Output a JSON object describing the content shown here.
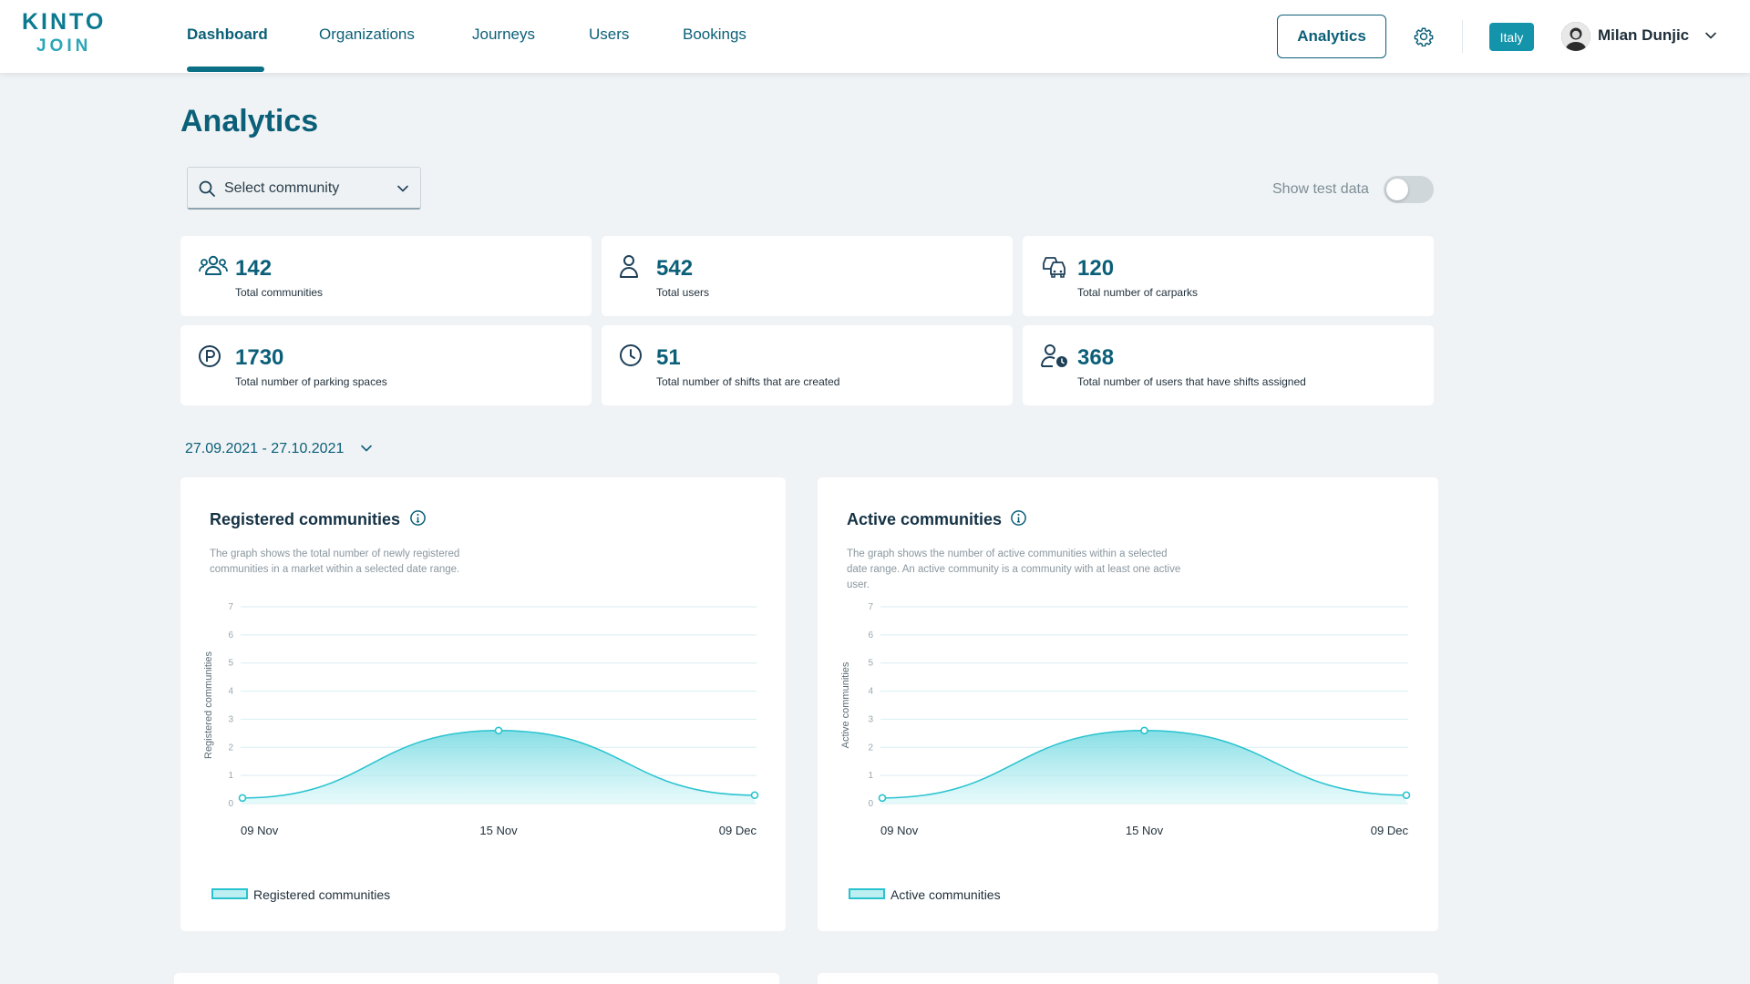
{
  "logo": {
    "line1": "KINTO",
    "line2": "JOIN"
  },
  "nav": [
    {
      "label": "Dashboard",
      "active": true
    },
    {
      "label": "Organizations",
      "active": false
    },
    {
      "label": "Journeys",
      "active": false
    },
    {
      "label": "Users",
      "active": false
    },
    {
      "label": "Bookings",
      "active": false
    }
  ],
  "header": {
    "analytics_button": "Analytics",
    "settings_icon": "gear-icon",
    "country": "Italy",
    "user_name": "Milan Dunjic"
  },
  "page": {
    "title": "Analytics",
    "search_placeholder": "Select community",
    "test_data_label": "Show test data",
    "test_data_enabled": false,
    "date_range": "27.09.2021 - 27.10.2021"
  },
  "stats": [
    {
      "icon": "communities-icon",
      "value": "142",
      "label": "Total communities"
    },
    {
      "icon": "user-icon",
      "value": "542",
      "label": "Total users"
    },
    {
      "icon": "carpark-icon",
      "value": "120",
      "label": "Total number of carparks"
    },
    {
      "icon": "parking-icon",
      "value": "1730",
      "label": "Total number of parking spaces"
    },
    {
      "icon": "clock-icon",
      "value": "51",
      "label": "Total number of shifts that are created"
    },
    {
      "icon": "user-clock-icon",
      "value": "368",
      "label": "Total number of users that have shifts assigned"
    }
  ],
  "colors": {
    "brand": "#0b5f78",
    "accent": "#28c3cf",
    "badge": "#1494ab",
    "background": "#eff3f5"
  },
  "chart_data": [
    {
      "type": "area",
      "title": "Registered communities",
      "description": "The graph shows the total number of newly registered communities in a market within a selected date range.",
      "ylabel": "Registered communities",
      "xlabel": "",
      "x": [
        "09 Nov",
        "15 Nov",
        "09 Dec"
      ],
      "y_ticks": [
        0,
        1,
        2,
        3,
        4,
        5,
        6,
        7
      ],
      "ylim": [
        0,
        7
      ],
      "series": [
        {
          "name": "Registered  communities",
          "values": [
            0.2,
            2.6,
            0.3
          ]
        }
      ],
      "grid": true,
      "legend": "bottom-left"
    },
    {
      "type": "area",
      "title": "Active  communities",
      "description": "The graph shows the number of active communities within a selected date range. An active community is a community with at least one active user.",
      "ylabel": "Active communities",
      "xlabel": "",
      "x": [
        "09 Nov",
        "15 Nov",
        "09 Dec"
      ],
      "y_ticks": [
        0,
        1,
        2,
        3,
        4,
        5,
        6,
        7
      ],
      "ylim": [
        0,
        7
      ],
      "series": [
        {
          "name": "Active communities",
          "values": [
            0.2,
            2.6,
            0.3
          ]
        }
      ],
      "grid": true,
      "legend": "bottom-left"
    }
  ]
}
